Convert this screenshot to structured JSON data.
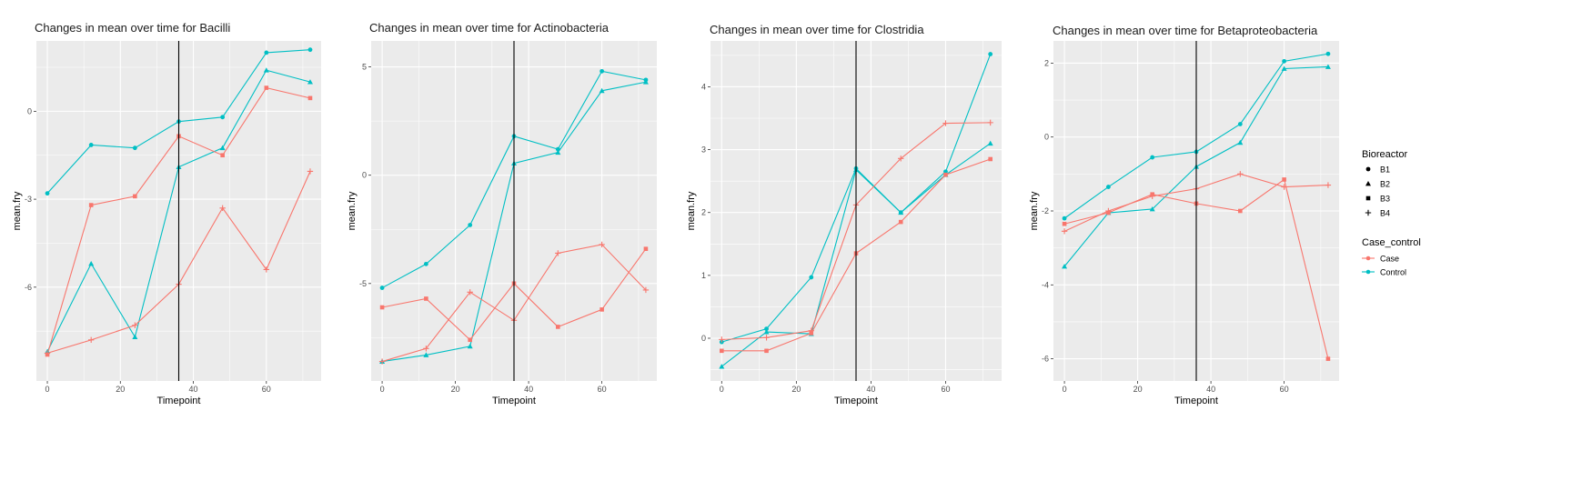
{
  "chart_data": [
    {
      "type": "line",
      "title": "Changes in mean over time for  Bacilli",
      "xlabel": "Timepoint",
      "ylabel": "mean.fry",
      "xlim": [
        -3,
        75
      ],
      "ylim": [
        -9.2,
        2.4
      ],
      "xticks": [
        0,
        20,
        40,
        60
      ],
      "yticks": [
        -6,
        -3,
        0
      ],
      "vline": 36,
      "series": [
        {
          "bioreactor": "B1",
          "group": "Control",
          "x": [
            0,
            12,
            24,
            36,
            48,
            60,
            72
          ],
          "y": [
            -2.8,
            -1.15,
            -1.25,
            -0.35,
            -0.2,
            2.0,
            2.1
          ]
        },
        {
          "bioreactor": "B2",
          "group": "Control",
          "x": [
            0,
            12,
            24,
            36,
            48,
            60,
            72
          ],
          "y": [
            -8.2,
            -5.2,
            -7.7,
            -1.9,
            -1.25,
            1.4,
            1.0
          ]
        },
        {
          "bioreactor": "B3",
          "group": "Case",
          "x": [
            0,
            12,
            24,
            36,
            48,
            60,
            72
          ],
          "y": [
            -8.3,
            -3.2,
            -2.9,
            -0.85,
            -1.5,
            0.8,
            0.45
          ]
        },
        {
          "bioreactor": "B4",
          "group": "Case",
          "x": [
            0,
            12,
            24,
            36,
            48,
            60,
            72
          ],
          "y": [
            -8.25,
            -7.8,
            -7.3,
            -5.9,
            -3.3,
            -5.4,
            -2.05
          ]
        }
      ]
    },
    {
      "type": "line",
      "title": "Changes in mean over time for  Actinobacteria",
      "xlabel": "Timepoint",
      "ylabel": "mean.fry",
      "xlim": [
        -3,
        75
      ],
      "ylim": [
        -9.5,
        6.2
      ],
      "xticks": [
        0,
        20,
        40,
        60
      ],
      "yticks": [
        -5,
        0,
        5
      ],
      "vline": 36,
      "series": [
        {
          "bioreactor": "B1",
          "group": "Control",
          "x": [
            0,
            12,
            24,
            36,
            48,
            60,
            72
          ],
          "y": [
            -5.2,
            -4.1,
            -2.3,
            1.8,
            1.2,
            4.8,
            4.4
          ]
        },
        {
          "bioreactor": "B2",
          "group": "Control",
          "x": [
            0,
            12,
            24,
            36,
            48,
            60,
            72
          ],
          "y": [
            -8.6,
            -8.3,
            -7.9,
            0.55,
            1.05,
            3.9,
            4.3
          ]
        },
        {
          "bioreactor": "B3",
          "group": "Case",
          "x": [
            0,
            12,
            24,
            36,
            48,
            60,
            72
          ],
          "y": [
            -6.1,
            -5.7,
            -7.6,
            -5.0,
            -7.0,
            -6.2,
            -3.4
          ]
        },
        {
          "bioreactor": "B4",
          "group": "Case",
          "x": [
            0,
            12,
            24,
            36,
            48,
            60,
            72
          ],
          "y": [
            -8.6,
            -8.0,
            -5.4,
            -6.7,
            -3.6,
            -3.2,
            -5.3
          ]
        }
      ]
    },
    {
      "type": "line",
      "title": "Changes in mean over time for  Clostridia",
      "xlabel": "Timepoint",
      "ylabel": "mean.fry",
      "xlim": [
        -3,
        75
      ],
      "ylim": [
        -0.68,
        4.73
      ],
      "xticks": [
        0,
        20,
        40,
        60
      ],
      "yticks": [
        0,
        1,
        2,
        3,
        4
      ],
      "vline": 36,
      "series": [
        {
          "bioreactor": "B1",
          "group": "Control",
          "x": [
            0,
            12,
            24,
            36,
            48,
            60,
            72
          ],
          "y": [
            -0.06,
            0.15,
            0.97,
            2.7,
            2.0,
            2.65,
            4.52
          ]
        },
        {
          "bioreactor": "B2",
          "group": "Control",
          "x": [
            0,
            12,
            24,
            36,
            48,
            60,
            72
          ],
          "y": [
            -0.45,
            0.1,
            0.07,
            2.68,
            2.0,
            2.6,
            3.1
          ]
        },
        {
          "bioreactor": "B3",
          "group": "Case",
          "x": [
            0,
            12,
            24,
            36,
            48,
            60,
            72
          ],
          "y": [
            -0.2,
            -0.2,
            0.08,
            1.35,
            1.85,
            2.6,
            2.85
          ]
        },
        {
          "bioreactor": "B4",
          "group": "Case",
          "x": [
            0,
            12,
            24,
            36,
            48,
            60,
            72
          ],
          "y": [
            -0.02,
            0.01,
            0.12,
            2.12,
            2.86,
            3.42,
            3.43
          ]
        }
      ]
    },
    {
      "type": "line",
      "title": "Changes in mean over time for  Betaproteobacteria",
      "xlabel": "Timepoint",
      "ylabel": "mean.fry",
      "xlim": [
        -3,
        75
      ],
      "ylim": [
        -6.6,
        2.6
      ],
      "xticks": [
        0,
        20,
        40,
        60
      ],
      "yticks": [
        -6,
        -4,
        -2,
        0,
        2
      ],
      "vline": 36,
      "series": [
        {
          "bioreactor": "B1",
          "group": "Control",
          "x": [
            0,
            12,
            24,
            36,
            48,
            60,
            72
          ],
          "y": [
            -2.2,
            -1.35,
            -0.55,
            -0.4,
            0.35,
            2.05,
            2.25
          ]
        },
        {
          "bioreactor": "B2",
          "group": "Control",
          "x": [
            0,
            12,
            24,
            36,
            48,
            60,
            72
          ],
          "y": [
            -3.5,
            -2.05,
            -1.95,
            -0.8,
            -0.15,
            1.85,
            1.9
          ]
        },
        {
          "bioreactor": "B3",
          "group": "Case",
          "x": [
            0,
            12,
            24,
            36,
            48,
            60,
            72
          ],
          "y": [
            -2.35,
            -2.05,
            -1.55,
            -1.8,
            -2.0,
            -1.15,
            -6.0
          ]
        },
        {
          "bioreactor": "B4",
          "group": "Case",
          "x": [
            0,
            12,
            24,
            36,
            48,
            60,
            72
          ],
          "y": [
            -2.55,
            -2.0,
            -1.6,
            -1.4,
            -1.0,
            -1.35,
            -1.3
          ]
        }
      ]
    }
  ],
  "legend": {
    "bioreactor_title": "Bioreactor",
    "bioreactor_items": [
      {
        "label": "B1",
        "shape": "circle"
      },
      {
        "label": "B2",
        "shape": "triangle"
      },
      {
        "label": "B3",
        "shape": "square"
      },
      {
        "label": "B4",
        "shape": "plus"
      }
    ],
    "group_title": "Case_control",
    "group_items": [
      {
        "label": "Case",
        "color": "#F8766D"
      },
      {
        "label": "Control",
        "color": "#00BFC4"
      }
    ]
  },
  "colors": {
    "Case": "#F8766D",
    "Control": "#00BFC4",
    "panel": "#EBEBEB",
    "grid": "#FFFFFF",
    "vline": "#000000"
  }
}
